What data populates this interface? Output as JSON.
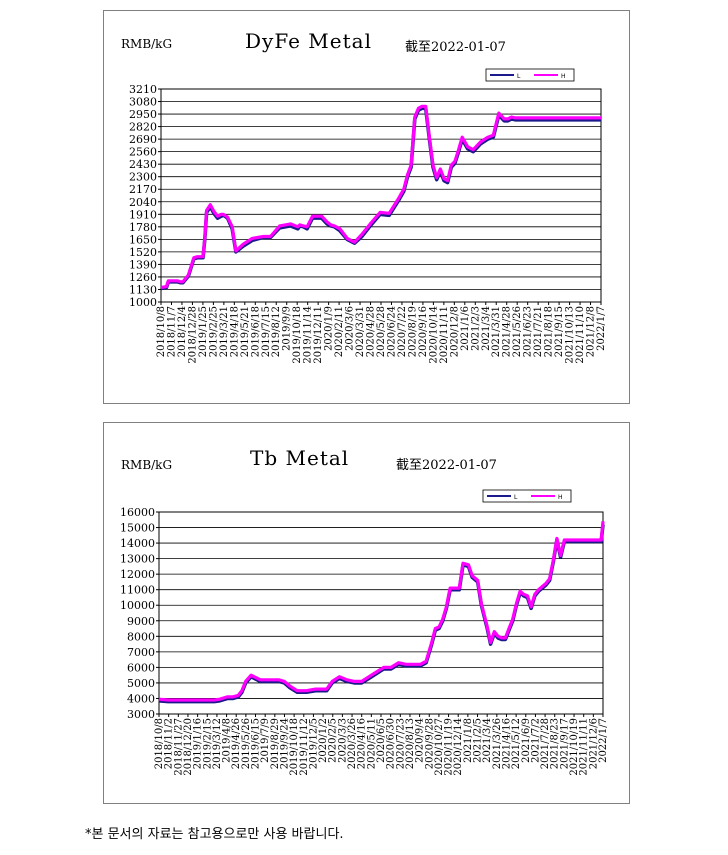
{
  "footer_note": "*본 문서의 자료는 참고용으로만 사용 바랍니다.",
  "chart_data": [
    {
      "type": "line",
      "title": "DyFe Metal",
      "date_note": "截至2022-01-07",
      "unit": "RMB/kG",
      "legend": [
        "L",
        "H"
      ],
      "legend_position": "top-right",
      "series_colors": {
        "L": "#1a1a8c",
        "H": "#ff00ff"
      },
      "grid": true,
      "ylim": [
        1000,
        3210
      ],
      "yticks": [
        1000,
        1130,
        1260,
        1390,
        1520,
        1650,
        1780,
        1910,
        2040,
        2170,
        2300,
        2430,
        2560,
        2690,
        2820,
        2950,
        3080,
        3210
      ],
      "xticks": [
        "2018/10/8",
        "2018/11/7",
        "2018/12/4",
        "2018/12/28",
        "2019/1/25",
        "2019/2/25",
        "2019/3/21",
        "2019/4/18",
        "2019/5/21",
        "2019/6/18",
        "2019/7/15",
        "2019/8/12",
        "2019/9/9",
        "2019/10/18",
        "2019/11/14",
        "2019/12/11",
        "2020/1/9",
        "2020/2/11",
        "2020/3/6",
        "2020/3/31",
        "2020/4/28",
        "2020/5/28",
        "2020/6/24",
        "2020/7/22",
        "2020/8/19",
        "2020/9/16",
        "2020/10/14",
        "2020/11/11",
        "2020/12/8",
        "2021/1/6",
        "2021/2/3",
        "2021/3/4",
        "2021/3/31",
        "2021/4/28",
        "2021/5/26",
        "2021/6/23",
        "2021/7/21",
        "2021/8/18",
        "2021/9/15",
        "2021/10/13",
        "2021/11/10",
        "2021/12/8",
        "2022/1/7"
      ],
      "x": [
        0,
        6,
        8,
        14,
        18,
        21,
        24,
        30,
        36,
        40,
        46,
        48,
        50,
        52,
        54,
        58,
        62,
        66,
        68,
        70,
        73,
        78,
        82,
        90,
        100,
        112,
        120,
        130,
        142,
        150,
        152,
        156,
        160,
        166,
        170,
        176,
        182,
        186,
        190,
        196,
        204,
        212,
        220,
        230,
        240,
        250,
        260,
        266,
        270,
        274,
        278,
        282,
        286,
        290,
        294,
        298,
        302,
        306,
        310,
        314,
        318,
        322,
        326,
        330,
        336,
        342,
        350,
        358,
        364,
        370,
        376,
        380,
        384,
        388,
        392,
        396,
        400,
        404,
        408,
        412,
        418,
        422,
        426,
        430,
        436,
        440,
        444,
        448,
        452,
        456,
        458,
        462,
        466,
        470,
        474,
        478,
        482
      ],
      "series": [
        {
          "name": "L",
          "values": [
            1140,
            1150,
            1210,
            1210,
            1210,
            1200,
            1200,
            1270,
            1450,
            1460,
            1460,
            1650,
            1930,
            1960,
            1990,
            1920,
            1870,
            1890,
            1900,
            1890,
            1870,
            1760,
            1520,
            1580,
            1640,
            1670,
            1670,
            1770,
            1790,
            1760,
            1790,
            1780,
            1760,
            1870,
            1870,
            1870,
            1810,
            1790,
            1780,
            1740,
            1650,
            1610,
            1680,
            1800,
            1910,
            1900,
            2050,
            2150,
            2300,
            2400,
            2900,
            2990,
            3010,
            3010,
            2690,
            2400,
            2270,
            2360,
            2260,
            2240,
            2400,
            2440,
            2560,
            2690,
            2590,
            2560,
            2640,
            2690,
            2710,
            2940,
            2880,
            2880,
            2900,
            2890,
            2890,
            2890,
            2890,
            2890,
            2890,
            2890,
            2890,
            2890,
            2890,
            2890,
            2890,
            2890,
            2890,
            2890,
            2890,
            2890,
            2890,
            2890,
            2890,
            2890,
            2890,
            2890,
            2890
          ]
        },
        {
          "name": "H",
          "values": [
            1150,
            1160,
            1220,
            1220,
            1220,
            1210,
            1210,
            1280,
            1460,
            1470,
            1470,
            1660,
            1950,
            1980,
            2010,
            1940,
            1890,
            1910,
            1910,
            1900,
            1880,
            1780,
            1530,
            1600,
            1660,
            1680,
            1680,
            1790,
            1810,
            1780,
            1800,
            1790,
            1780,
            1890,
            1890,
            1890,
            1830,
            1800,
            1790,
            1760,
            1660,
            1620,
            1700,
            1820,
            1930,
            1920,
            2070,
            2170,
            2320,
            2420,
            2920,
            3010,
            3030,
            3030,
            2710,
            2420,
            2290,
            2380,
            2280,
            2260,
            2420,
            2460,
            2580,
            2710,
            2610,
            2580,
            2660,
            2710,
            2730,
            2960,
            2900,
            2900,
            2920,
            2910,
            2910,
            2910,
            2910,
            2910,
            2910,
            2910,
            2910,
            2910,
            2910,
            2910,
            2910,
            2910,
            2910,
            2910,
            2910,
            2910,
            2910,
            2910,
            2910,
            2910,
            2910,
            2910,
            2910
          ]
        }
      ]
    },
    {
      "type": "line",
      "title": "Tb Metal",
      "date_note": "截至2022-01-07",
      "unit": "RMB/kG",
      "legend": [
        "L",
        "H"
      ],
      "legend_position": "top-right",
      "series_colors": {
        "L": "#1a1a8c",
        "H": "#ff00ff"
      },
      "grid": true,
      "ylim": [
        3000,
        16000
      ],
      "yticks": [
        3000,
        4000,
        5000,
        6000,
        7000,
        8000,
        9000,
        10000,
        11000,
        12000,
        13000,
        14000,
        15000,
        16000
      ],
      "xticks": [
        "2018/10/8",
        "2018/11/2",
        "2018/11/27",
        "2018/12/20",
        "2019/1/16",
        "2019/2/15",
        "2019/3/12",
        "2019/4/8",
        "2019/4/26",
        "2019/5/26",
        "2019/6/15",
        "2019/7/9",
        "2019/8/29",
        "2019/9/24",
        "2019/10/18",
        "2019/11/12",
        "2019/12/5",
        "2020/1/2",
        "2020/2/5",
        "2020/3/3",
        "2020/3/26",
        "2020/4/16",
        "2020/5/11",
        "2020/6/5",
        "2020/6/30",
        "2020/7/23",
        "2020/8/13",
        "2020/9/4",
        "2020/9/28",
        "2020/10/27",
        "2020/11/19",
        "2020/12/14",
        "2021/1/8",
        "2021/2/5",
        "2021/3/4",
        "2021/3/26",
        "2021/4/16",
        "2021/5/12",
        "2021/6/9",
        "2021/7/2",
        "2021/7/28",
        "2021/8/23",
        "2021/9/17",
        "2021/10/19",
        "2021/11/11",
        "2021/12/6",
        "2022/1/7"
      ],
      "x": [
        0,
        10,
        20,
        30,
        40,
        50,
        56,
        60,
        66,
        74,
        80,
        86,
        90,
        94,
        100,
        110,
        120,
        130,
        136,
        142,
        150,
        160,
        170,
        176,
        182,
        188,
        196,
        204,
        212,
        220,
        228,
        236,
        244,
        252,
        260,
        268,
        276,
        284,
        290,
        296,
        300,
        304,
        308,
        312,
        316,
        320,
        326,
        330,
        336,
        340,
        346,
        350,
        356,
        360,
        364,
        368,
        372,
        376,
        380,
        384,
        388,
        392,
        396,
        400,
        404,
        408,
        412,
        416,
        420,
        424,
        428,
        432,
        436,
        440,
        444,
        448,
        452,
        456,
        460,
        464,
        468,
        472,
        476,
        480,
        482
      ],
      "series": [
        {
          "name": "L",
          "values": [
            3850,
            3800,
            3800,
            3800,
            3800,
            3800,
            3800,
            3800,
            3850,
            4000,
            4000,
            4100,
            4400,
            5000,
            5400,
            5100,
            5100,
            5100,
            5000,
            4700,
            4400,
            4400,
            4500,
            4500,
            4500,
            5000,
            5300,
            5100,
            5000,
            5000,
            5300,
            5600,
            5900,
            5900,
            6200,
            6100,
            6100,
            6100,
            6300,
            7500,
            8400,
            8500,
            9000,
            9800,
            11000,
            11000,
            11000,
            12600,
            12500,
            11800,
            11500,
            10000,
            8600,
            7500,
            8200,
            7900,
            7800,
            7800,
            8400,
            9000,
            10000,
            10800,
            10600,
            10500,
            9800,
            10600,
            10900,
            11100,
            11300,
            11600,
            12800,
            14200,
            13100,
            14100,
            14100,
            14100,
            14100,
            14100,
            14100,
            14100,
            14100,
            14100,
            14100,
            14100,
            15200
          ]
        },
        {
          "name": "H",
          "values": [
            3950,
            3900,
            3900,
            3900,
            3900,
            3900,
            3900,
            3900,
            3950,
            4100,
            4100,
            4200,
            4500,
            5100,
            5500,
            5200,
            5200,
            5200,
            5100,
            4800,
            4500,
            4500,
            4600,
            4600,
            4600,
            5100,
            5400,
            5200,
            5100,
            5100,
            5400,
            5700,
            6000,
            6000,
            6300,
            6200,
            6200,
            6200,
            6400,
            7600,
            8500,
            8600,
            9100,
            9900,
            11100,
            11100,
            11100,
            12700,
            12600,
            11900,
            11600,
            10100,
            8700,
            7600,
            8300,
            8000,
            7900,
            7900,
            8500,
            9100,
            10100,
            10900,
            10700,
            10600,
            9900,
            10700,
            11000,
            11200,
            11400,
            11700,
            12900,
            14300,
            13200,
            14200,
            14200,
            14200,
            14200,
            14200,
            14200,
            14200,
            14200,
            14200,
            14200,
            14200,
            15400
          ]
        }
      ]
    }
  ]
}
